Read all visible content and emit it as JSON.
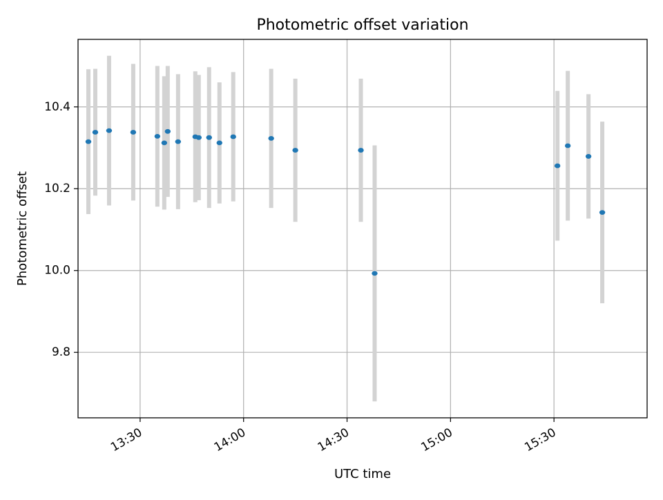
{
  "chart_data": {
    "type": "scatter",
    "title": "Photometric offset variation",
    "xlabel": "UTC time",
    "ylabel": "Photometric offset",
    "x_ticks": [
      "13:30",
      "14:00",
      "14:30",
      "15:00",
      "15:30"
    ],
    "y_ticks": [
      "9.8",
      "10.0",
      "10.2",
      "10.4"
    ],
    "xlim": [
      "13:12",
      "15:57"
    ],
    "ylim": [
      9.64,
      10.565
    ],
    "grid": true,
    "colors": {
      "points": "#1f77b4",
      "errorbars": "#d3d3d3",
      "grid": "#b0b0b0"
    },
    "points": [
      {
        "x": "13:15",
        "y": 10.315,
        "err": 0.177
      },
      {
        "x": "13:17",
        "y": 10.338,
        "err": 0.155
      },
      {
        "x": "13:21",
        "y": 10.342,
        "err": 0.183
      },
      {
        "x": "13:28",
        "y": 10.338,
        "err": 0.167
      },
      {
        "x": "13:35",
        "y": 10.328,
        "err": 0.172
      },
      {
        "x": "13:37",
        "y": 10.312,
        "err": 0.163
      },
      {
        "x": "13:38",
        "y": 10.34,
        "err": 0.16
      },
      {
        "x": "13:41",
        "y": 10.315,
        "err": 0.165
      },
      {
        "x": "13:46",
        "y": 10.327,
        "err": 0.16
      },
      {
        "x": "13:47",
        "y": 10.325,
        "err": 0.153
      },
      {
        "x": "13:50",
        "y": 10.325,
        "err": 0.172
      },
      {
        "x": "13:53",
        "y": 10.312,
        "err": 0.148
      },
      {
        "x": "13:57",
        "y": 10.327,
        "err": 0.158
      },
      {
        "x": "14:08",
        "y": 10.323,
        "err": 0.17
      },
      {
        "x": "14:15",
        "y": 10.294,
        "err": 0.175
      },
      {
        "x": "14:34",
        "y": 10.294,
        "err": 0.175
      },
      {
        "x": "14:38",
        "y": 9.993,
        "err": 0.313
      },
      {
        "x": "15:31",
        "y": 10.256,
        "err": 0.183
      },
      {
        "x": "15:34",
        "y": 10.305,
        "err": 0.183
      },
      {
        "x": "15:40",
        "y": 10.279,
        "err": 0.152
      },
      {
        "x": "15:44",
        "y": 10.142,
        "err": 0.222
      }
    ]
  }
}
